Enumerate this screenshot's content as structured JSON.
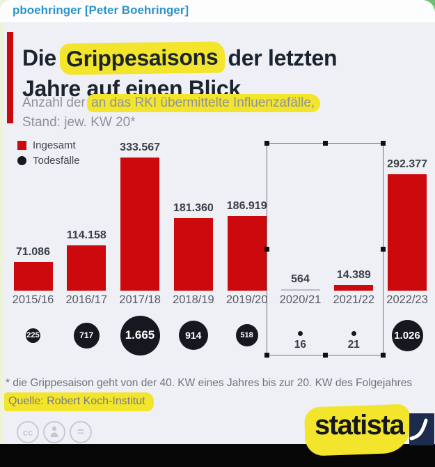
{
  "header": {
    "username": "pboehringer [Peter Boehringer]"
  },
  "infographic": {
    "title": {
      "pre": "Die ",
      "highlight": "Grippesaisons",
      "post": " der letzten",
      "line2": "Jahre auf einen Blick"
    },
    "subtitle": {
      "pre": "Anzahl der ",
      "highlight": "an das RKI übermittelte Influenzafälle,",
      "line2": "Stand: jew. KW 20*"
    },
    "legend": [
      {
        "symbol": "red-square",
        "label": "Ingesamt"
      },
      {
        "symbol": "black-circle",
        "label": "Todesfälle"
      }
    ],
    "footnote": "* die Grippesaison geht von der 40. KW eines Jahres bis zur 20. KW des Folgejahres",
    "source": "Quelle: Robert Koch-Institut",
    "brand": "statista",
    "cc_icons": [
      "cc-icon",
      "attribution-person-icon",
      "equals-nd-icon"
    ]
  },
  "chart_data": {
    "type": "bar",
    "title": "Die Grippesaisons der letzten Jahre auf einen Blick",
    "subtitle": "Anzahl der an das RKI übermittelte Influenzafälle, Stand: jew. KW 20*",
    "categories": [
      "2015/16",
      "2016/17",
      "2017/18",
      "2018/19",
      "2019/20",
      "2020/21",
      "2021/22",
      "2022/23"
    ],
    "series": [
      {
        "name": "Ingesamt",
        "type": "bar",
        "color": "#cc090d",
        "values": [
          71086,
          114158,
          333567,
          181360,
          186919,
          564,
          14389,
          292377
        ],
        "labels": [
          "71.086",
          "114.158",
          "333.567",
          "181.360",
          "186.919",
          "564",
          "14.389",
          "292.377"
        ]
      },
      {
        "name": "Todesfälle",
        "type": "sized-point",
        "color": "#15191f",
        "values": [
          225,
          717,
          1665,
          914,
          518,
          16,
          21,
          1026
        ],
        "labels": [
          "225",
          "717",
          "1.665",
          "914",
          "518",
          "16",
          "21",
          "1.026"
        ]
      }
    ],
    "ymax_ref": 333567,
    "grid": false,
    "legend_position": "top-left"
  },
  "colors": {
    "bar_red": "#cc090d",
    "highlight_yellow": "#f3e42c",
    "death_circle_black": "#15191f",
    "chart_background": "#eef0f5",
    "username_blue": "#2a93cc",
    "brand_navy": "#1c2b4e",
    "selection_border": "#6e7175"
  },
  "selection_state": {
    "selected_categories": [
      "2020/21",
      "2021/22"
    ]
  }
}
